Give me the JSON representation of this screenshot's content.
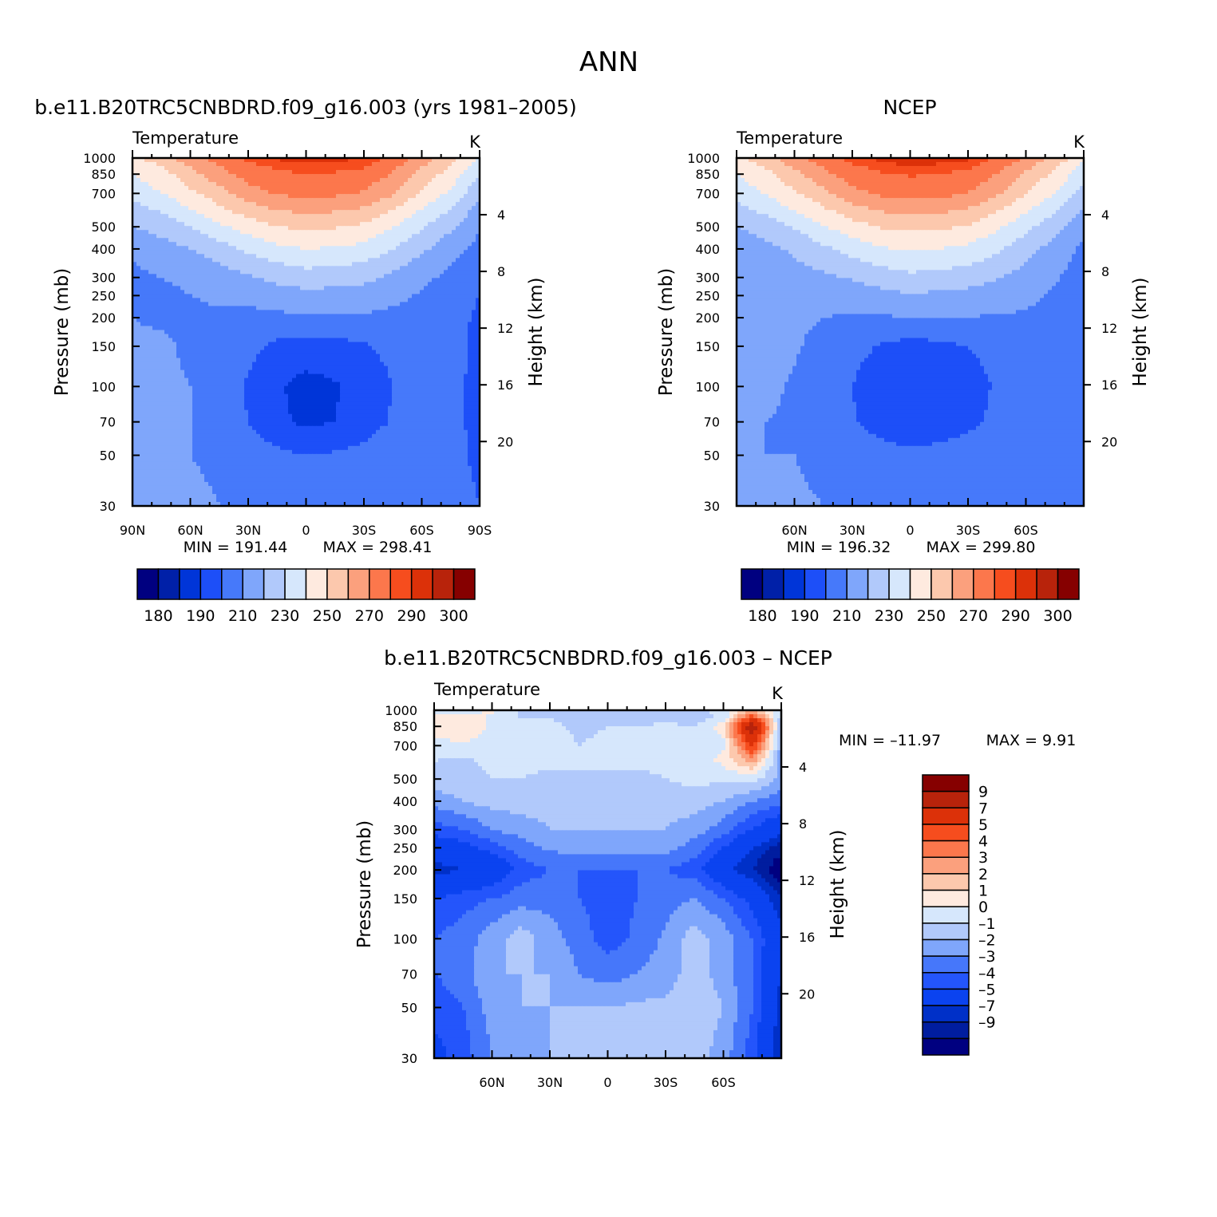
{
  "figure": {
    "title": "ANN",
    "colors": {
      "abs_scale": [
        "#000080",
        "#0020a8",
        "#0035d8",
        "#1d4ff8",
        "#4679fa",
        "#7fa6fb",
        "#b1c9fb",
        "#d6e7fc",
        "#feeadf",
        "#fcc8ad",
        "#fba07d",
        "#fc774c",
        "#f64d1e",
        "#dc3109",
        "#b8230b",
        "#860000"
      ],
      "diff_scale": [
        "#000080",
        "#001d9f",
        "#0030c8",
        "#0b43f0",
        "#2455fb",
        "#4677fa",
        "#7fa6fb",
        "#b1c9fb",
        "#d6e7fc",
        "#feeadf",
        "#fcc8ad",
        "#fba07d",
        "#fc774c",
        "#f64d1e",
        "#dc3109",
        "#b8230b",
        "#860000"
      ]
    }
  },
  "chart_data": [
    {
      "type": "contour",
      "panel": "model",
      "title": "b.e11.B20TRC5CNBDRD.f09_g16.003 (yrs 1981–2005)",
      "left_label": "Temperature",
      "unit_label": "K",
      "ylabel": "Pressure (mb)",
      "ylabel_right": "Height (km)",
      "x_ticks": [
        "90N",
        "60N",
        "30N",
        "0",
        "30S",
        "60S",
        "90S"
      ],
      "x_range": [
        90,
        -90
      ],
      "y_ticks": [
        "30",
        "50",
        "70",
        "100",
        "150",
        "200",
        "250",
        "300",
        "400",
        "500",
        "700",
        "850",
        "1000"
      ],
      "y_range": [
        1000,
        30
      ],
      "y_scale": "log",
      "height_ticks": [
        "4",
        "8",
        "12",
        "16",
        "20"
      ],
      "min_text": "MIN = 191.44",
      "max_text": "MAX = 298.41",
      "colorbar_labels": [
        "180",
        "190",
        "210",
        "230",
        "250",
        "270",
        "290",
        "300"
      ],
      "field": "temperature",
      "lat_levels": [
        90,
        75,
        60,
        45,
        30,
        15,
        0,
        -15,
        -30,
        -45,
        -60,
        -75,
        -90
      ],
      "p_levels": [
        1000,
        925,
        850,
        700,
        600,
        500,
        400,
        300,
        250,
        200,
        150,
        100,
        70,
        50,
        30
      ],
      "values": [
        [
          258,
          266,
          276,
          284,
          292,
          296,
          297,
          297,
          295,
          288,
          276,
          264,
          248
        ],
        [
          252,
          260,
          271,
          280,
          288,
          292,
          294,
          293,
          291,
          283,
          271,
          260,
          244
        ],
        [
          250,
          256,
          266,
          277,
          284,
          288,
          290,
          289,
          287,
          279,
          266,
          256,
          240
        ],
        [
          244,
          250,
          258,
          266,
          276,
          281,
          283,
          282,
          279,
          271,
          258,
          248,
          232
        ],
        [
          236,
          242,
          250,
          258,
          266,
          271,
          273,
          272,
          269,
          261,
          250,
          240,
          226
        ],
        [
          230,
          234,
          240,
          248,
          255,
          260,
          262,
          261,
          258,
          251,
          241,
          232,
          222
        ],
        [
          222,
          226,
          230,
          236,
          242,
          248,
          250,
          249,
          247,
          240,
          232,
          224,
          216
        ],
        [
          218,
          220,
          222,
          225,
          229,
          233,
          236,
          235,
          233,
          228,
          222,
          218,
          212
        ],
        [
          218,
          218,
          220,
          221,
          222,
          225,
          227,
          226,
          225,
          222,
          219,
          216,
          210
        ],
        [
          220,
          219,
          219,
          219,
          218,
          218,
          219,
          219,
          219,
          218,
          218,
          214,
          208
        ],
        [
          221,
          221,
          219,
          216,
          213,
          208,
          206,
          207,
          209,
          213,
          216,
          214,
          207
        ],
        [
          222,
          221,
          220,
          214,
          209,
          201,
          197,
          199,
          204,
          210,
          215,
          214,
          206
        ],
        [
          222,
          221,
          220,
          215,
          210,
          202,
          198,
          200,
          205,
          211,
          215,
          214,
          206
        ],
        [
          222,
          221,
          220,
          218,
          215,
          212,
          210,
          211,
          213,
          216,
          218,
          215,
          206
        ],
        [
          224,
          224,
          222,
          220,
          220,
          219,
          218,
          219,
          219,
          220,
          220,
          218,
          210
        ]
      ]
    },
    {
      "type": "contour",
      "panel": "obs",
      "title": "NCEP",
      "left_label": "Temperature",
      "unit_label": "K",
      "ylabel": "Pressure (mb)",
      "ylabel_right": "Height (km)",
      "x_ticks": [
        "60N",
        "30N",
        "0",
        "30S",
        "60S"
      ],
      "x_range": [
        90,
        -90
      ],
      "y_ticks": [
        "30",
        "50",
        "70",
        "100",
        "150",
        "200",
        "250",
        "300",
        "400",
        "500",
        "700",
        "850",
        "1000"
      ],
      "y_range": [
        1000,
        30
      ],
      "y_scale": "log",
      "height_ticks": [
        "4",
        "8",
        "12",
        "16",
        "20"
      ],
      "min_text": "MIN = 196.32",
      "max_text": "MAX = 299.80",
      "colorbar_labels": [
        "180",
        "190",
        "210",
        "230",
        "250",
        "270",
        "290",
        "300"
      ],
      "field": "temperature",
      "lat_levels": [
        90,
        75,
        60,
        45,
        30,
        15,
        0,
        -15,
        -30,
        -45,
        -60,
        -75,
        -90
      ],
      "p_levels": [
        1000,
        925,
        850,
        700,
        600,
        500,
        400,
        300,
        250,
        200,
        150,
        100,
        70,
        50,
        30
      ],
      "values": [
        [
          258,
          266,
          277,
          285,
          293,
          297,
          299,
          298,
          296,
          289,
          279,
          268,
          252
        ],
        [
          253,
          261,
          272,
          281,
          289,
          293,
          295,
          294,
          292,
          284,
          273,
          262,
          247
        ],
        [
          250,
          257,
          267,
          278,
          285,
          289,
          291,
          290,
          288,
          280,
          268,
          258,
          244
        ],
        [
          244,
          251,
          259,
          267,
          277,
          282,
          284,
          283,
          280,
          272,
          260,
          250,
          236
        ],
        [
          237,
          243,
          251,
          259,
          267,
          272,
          274,
          273,
          270,
          262,
          252,
          242,
          229
        ],
        [
          230,
          235,
          241,
          249,
          256,
          261,
          263,
          262,
          259,
          252,
          243,
          234,
          224
        ],
        [
          223,
          227,
          232,
          238,
          244,
          249,
          251,
          250,
          248,
          242,
          234,
          226,
          218
        ],
        [
          222,
          224,
          226,
          228,
          231,
          235,
          238,
          237,
          235,
          231,
          226,
          221,
          216
        ],
        [
          225,
          224,
          223,
          223,
          225,
          227,
          229,
          228,
          227,
          225,
          222,
          219,
          214
        ],
        [
          226,
          225,
          222,
          220,
          219,
          219,
          220,
          220,
          220,
          219,
          219,
          217,
          213
        ],
        [
          224,
          224,
          221,
          217,
          214,
          209,
          207,
          208,
          210,
          214,
          217,
          216,
          213
        ],
        [
          222,
          222,
          219,
          215,
          210,
          203,
          200,
          202,
          206,
          211,
          215,
          215,
          212
        ],
        [
          221,
          220,
          219,
          216,
          211,
          205,
          202,
          204,
          208,
          212,
          215,
          215,
          211
        ],
        [
          221,
          220,
          220,
          218,
          216,
          214,
          212,
          213,
          214,
          216,
          217,
          216,
          212
        ],
        [
          222,
          222,
          221,
          220,
          219,
          219,
          219,
          219,
          219,
          220,
          220,
          219,
          216
        ]
      ]
    },
    {
      "type": "contour",
      "panel": "diff",
      "title": "b.e11.B20TRC5CNBDRD.f09_g16.003 – NCEP",
      "left_label": "Temperature",
      "unit_label": "K",
      "ylabel": "Pressure (mb)",
      "ylabel_right": "Height (km)",
      "x_ticks": [
        "60N",
        "30N",
        "0",
        "30S",
        "60S"
      ],
      "x_range": [
        90,
        -90
      ],
      "y_ticks": [
        "30",
        "50",
        "70",
        "100",
        "150",
        "200",
        "250",
        "300",
        "400",
        "500",
        "700",
        "850",
        "1000"
      ],
      "y_range": [
        1000,
        30
      ],
      "y_scale": "log",
      "height_ticks": [
        "4",
        "8",
        "12",
        "16",
        "20"
      ],
      "min_text": "MIN = –11.97",
      "max_text": "MAX =    9.91",
      "colorbar_labels": [
        "9",
        "7",
        "5",
        "4",
        "3",
        "2",
        "1",
        "0",
        "–1",
        "–2",
        "–3",
        "–4",
        "–5",
        "–7",
        "–9"
      ],
      "field": "temperature difference",
      "lat_levels": [
        90,
        75,
        60,
        45,
        30,
        15,
        0,
        -15,
        -30,
        -45,
        -60,
        -75,
        -90
      ],
      "p_levels": [
        1000,
        925,
        850,
        700,
        600,
        500,
        400,
        300,
        250,
        200,
        150,
        100,
        70,
        50,
        30
      ],
      "values": [
        [
          -0.5,
          -0.5,
          0.2,
          -1.2,
          -1.8,
          -1.5,
          -1.2,
          -1.5,
          -1.8,
          -1.5,
          -0.5,
          2.0,
          -1.0
        ],
        [
          0.4,
          0.8,
          -0.2,
          -1.0,
          -1.0,
          -1.5,
          -1.6,
          -1.5,
          -1.2,
          -1.5,
          -0.8,
          5.0,
          -1.5
        ],
        [
          0.8,
          1.0,
          -0.2,
          -0.8,
          -0.8,
          -1.2,
          -1.0,
          -1.0,
          -0.8,
          -1.0,
          0.5,
          9.0,
          -2.0
        ],
        [
          -0.5,
          -0.2,
          -0.5,
          -0.8,
          -0.5,
          -1.0,
          -0.8,
          -0.8,
          -0.5,
          -0.8,
          -0.2,
          5.5,
          -2.5
        ],
        [
          -1.0,
          -1.2,
          -0.8,
          -0.8,
          -0.8,
          -0.8,
          -0.8,
          -0.8,
          -0.8,
          -0.6,
          0.3,
          2.5,
          -2.5
        ],
        [
          -1.5,
          -1.2,
          -1.0,
          -1.0,
          -1.2,
          -1.2,
          -1.2,
          -1.2,
          -1.0,
          -0.7,
          -0.8,
          -0.5,
          -2.5
        ],
        [
          -2.5,
          -2.0,
          -1.5,
          -1.5,
          -1.5,
          -1.5,
          -1.5,
          -1.5,
          -1.5,
          -1.5,
          -2.0,
          -3.0,
          -3.5
        ],
        [
          -4.5,
          -4.0,
          -3.0,
          -2.5,
          -2.0,
          -2.0,
          -2.0,
          -2.0,
          -2.0,
          -2.5,
          -3.5,
          -5.0,
          -6.5
        ],
        [
          -6.0,
          -5.5,
          -4.5,
          -3.5,
          -2.8,
          -2.5,
          -2.5,
          -2.5,
          -2.5,
          -3.5,
          -5.0,
          -7.0,
          -8.5
        ],
        [
          -7.5,
          -7.0,
          -6.5,
          -4.5,
          -4.0,
          -4.0,
          -4.0,
          -4.0,
          -4.0,
          -4.5,
          -6.5,
          -8.0,
          -10.0
        ],
        [
          -5.0,
          -4.5,
          -4.0,
          -3.5,
          -3.5,
          -4.0,
          -4.5,
          -4.0,
          -3.5,
          -3.0,
          -4.0,
          -5.5,
          -8.0
        ],
        [
          -4.0,
          -3.5,
          -2.5,
          -1.5,
          -2.5,
          -3.5,
          -4.5,
          -3.8,
          -2.8,
          -1.5,
          -2.5,
          -4.0,
          -6.5
        ],
        [
          -4.0,
          -3.5,
          -2.0,
          -2.0,
          -2.0,
          -3.0,
          -3.5,
          -3.0,
          -2.5,
          -1.5,
          -2.5,
          -4.0,
          -7.0
        ],
        [
          -4.5,
          -4.0,
          -2.5,
          -2.0,
          -2.0,
          -2.0,
          -2.0,
          -1.8,
          -1.8,
          -1.2,
          -2.0,
          -4.0,
          -7.5
        ],
        [
          -5.5,
          -4.5,
          -3.0,
          -2.5,
          -2.0,
          -2.0,
          -1.8,
          -1.8,
          -1.8,
          -1.5,
          -2.5,
          -4.5,
          -8.0
        ]
      ]
    }
  ]
}
